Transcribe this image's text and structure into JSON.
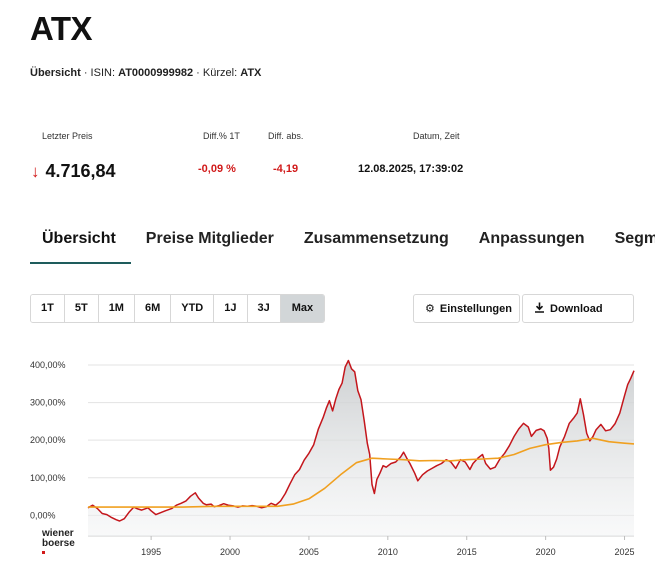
{
  "header": {
    "title": "ATX",
    "overview_label": "Übersicht",
    "isin_label": "ISIN:",
    "isin_value": "AT0000999982",
    "symbol_label": "Kürzel:",
    "symbol_value": "ATX"
  },
  "quote": {
    "headers": {
      "last_price": "Letzter Preis",
      "diff_pct": "Diff.% 1T",
      "diff_abs": "Diff. abs.",
      "datetime": "Datum, Zeit"
    },
    "last_price": "4.716,84",
    "trend_icon": "arrow-down-icon",
    "diff_pct": "-0,09 %",
    "diff_abs": "-4,19",
    "datetime": "12.08.2025, 17:39:02",
    "negative_color": "#d11a1a"
  },
  "tabs": [
    {
      "label": "Übersicht",
      "active": true
    },
    {
      "label": "Preise Mitglieder",
      "active": false
    },
    {
      "label": "Zusammensetzung",
      "active": false
    },
    {
      "label": "Anpassungen",
      "active": false
    },
    {
      "label": "Segment",
      "active": false
    }
  ],
  "ranges": [
    "1T",
    "5T",
    "1M",
    "6M",
    "YTD",
    "1J",
    "3J",
    "Max"
  ],
  "selected_range": "Max",
  "toolbar": {
    "settings_label": "Einstellungen",
    "settings_icon": "gear-icon",
    "download_label": "Download",
    "download_icon": "download-icon"
  },
  "logo": {
    "line1": "wiener",
    "line2": "boerse"
  },
  "chart_data": {
    "type": "line",
    "y_unit": "%",
    "y_ticks": [
      "400,00%",
      "300,00%",
      "200,00%",
      "100,00%",
      "0,00%"
    ],
    "y_tick_values": [
      400,
      300,
      200,
      100,
      0
    ],
    "ylim": [
      -55,
      440
    ],
    "x_ticks": [
      "1995",
      "2000",
      "2005",
      "2010",
      "2015",
      "2020",
      "2025"
    ],
    "x_tick_values": [
      1995,
      2000,
      2005,
      2010,
      2015,
      2020,
      2025
    ],
    "xlim": [
      1991.0,
      2025.6
    ],
    "grid": true,
    "series": [
      {
        "role": "price",
        "color": "#c4161c",
        "fill": true,
        "x": [
          1991.0,
          1991.3,
          1991.6,
          1991.9,
          1992.2,
          1992.5,
          1992.8,
          1993.0,
          1993.3,
          1993.6,
          1993.9,
          1994.1,
          1994.4,
          1994.8,
          1995.0,
          1995.3,
          1995.6,
          1995.9,
          1996.3,
          1996.6,
          1996.9,
          1997.2,
          1997.5,
          1997.8,
          1998.0,
          1998.3,
          1998.5,
          1998.8,
          1999.0,
          1999.3,
          1999.6,
          1999.9,
          2000.2,
          2000.5,
          2000.8,
          2001.1,
          2001.4,
          2001.7,
          2002.0,
          2002.3,
          2002.6,
          2002.9,
          2003.2,
          2003.5,
          2003.8,
          2004.1,
          2004.4,
          2004.7,
          2005.0,
          2005.3,
          2005.6,
          2005.9,
          2006.1,
          2006.3,
          2006.5,
          2006.7,
          2006.9,
          2007.1,
          2007.3,
          2007.5,
          2007.7,
          2007.9,
          2008.1,
          2008.3,
          2008.5,
          2008.7,
          2008.85,
          2009.0,
          2009.15,
          2009.3,
          2009.5,
          2009.7,
          2009.9,
          2010.2,
          2010.5,
          2010.8,
          2011.0,
          2011.2,
          2011.4,
          2011.7,
          2011.9,
          2012.2,
          2012.5,
          2012.8,
          2013.1,
          2013.4,
          2013.7,
          2014.0,
          2014.3,
          2014.6,
          2014.9,
          2015.2,
          2015.4,
          2015.7,
          2016.0,
          2016.2,
          2016.5,
          2016.8,
          2017.1,
          2017.4,
          2017.7,
          2018.0,
          2018.3,
          2018.6,
          2018.9,
          2019.1,
          2019.4,
          2019.7,
          2019.9,
          2020.1,
          2020.2,
          2020.3,
          2020.5,
          2020.7,
          2020.9,
          2021.2,
          2021.5,
          2021.8,
          2022.0,
          2022.2,
          2022.4,
          2022.6,
          2022.8,
          2023.0,
          2023.2,
          2023.5,
          2023.8,
          2024.1,
          2024.4,
          2024.7,
          2025.0,
          2025.2,
          2025.4,
          2025.6
        ],
        "y": [
          20,
          27,
          18,
          5,
          2,
          -6,
          -12,
          -15,
          -9,
          8,
          22,
          18,
          14,
          20,
          12,
          2,
          7,
          12,
          18,
          27,
          32,
          38,
          51,
          60,
          46,
          32,
          28,
          30,
          23,
          26,
          31,
          27,
          25,
          22,
          25,
          24,
          26,
          24,
          20,
          23,
          32,
          27,
          38,
          58,
          84,
          108,
          122,
          147,
          165,
          188,
          230,
          260,
          285,
          305,
          278,
          310,
          335,
          352,
          395,
          412,
          390,
          382,
          332,
          308,
          252,
          192,
          162,
          82,
          58,
          95,
          112,
          132,
          128,
          138,
          142,
          155,
          168,
          152,
          138,
          112,
          92,
          108,
          118,
          125,
          132,
          138,
          148,
          142,
          125,
          148,
          142,
          122,
          138,
          152,
          162,
          138,
          123,
          128,
          150,
          165,
          185,
          210,
          230,
          245,
          235,
          210,
          226,
          230,
          225,
          205,
          178,
          120,
          128,
          150,
          182,
          210,
          245,
          260,
          272,
          310,
          268,
          218,
          198,
          210,
          228,
          242,
          225,
          228,
          244,
          272,
          318,
          348,
          365,
          385
        ]
      },
      {
        "role": "moving-average",
        "color": "#f0a020",
        "fill": false,
        "x": [
          1991.0,
          1993.0,
          1995.0,
          1997.0,
          1999.0,
          2001.0,
          2003.0,
          2004.0,
          2005.0,
          2006.0,
          2007.0,
          2008.0,
          2009.0,
          2010.0,
          2011.0,
          2012.0,
          2013.0,
          2014.0,
          2015.0,
          2016.0,
          2017.0,
          2018.0,
          2019.0,
          2020.0,
          2021.0,
          2022.0,
          2023.0,
          2024.0,
          2025.0,
          2025.6
        ],
        "y": [
          22,
          22,
          22,
          22,
          24,
          24,
          24,
          30,
          44,
          72,
          108,
          140,
          152,
          150,
          148,
          145,
          146,
          145,
          148,
          150,
          152,
          162,
          178,
          188,
          194,
          198,
          205,
          196,
          192,
          190
        ]
      }
    ]
  }
}
